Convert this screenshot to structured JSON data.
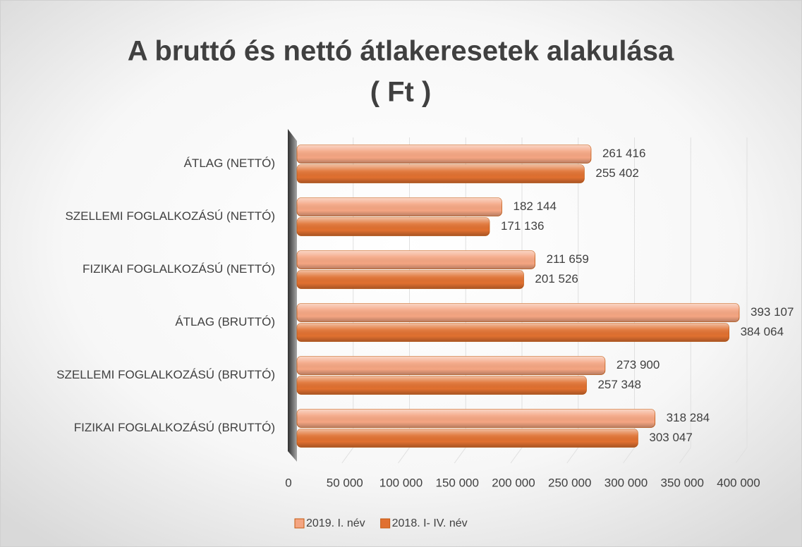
{
  "chart_data": {
    "type": "bar",
    "orientation": "horizontal",
    "title": [
      "A bruttó és nettó  átlakeresetek alakulása",
      "( Ft )"
    ],
    "categories": [
      "ÁTLAG (NETTÓ)",
      "SZELLEMI FOGLALKOZÁSÚ (NETTÓ)",
      "FIZIKAI FOGLALKOZÁSÚ (NETTÓ)",
      "ÁTLAG (BRUTTÓ)",
      "SZELLEMI FOGLALKOZÁSÚ (BRUTTÓ)",
      "FIZIKAI FOGLALKOZÁSÚ (BRUTTÓ)"
    ],
    "series": [
      {
        "name": "2019. I. név",
        "color": "#f4a582",
        "values": [
          261416,
          182144,
          211659,
          393107,
          273900,
          318284
        ],
        "value_labels": [
          "261 416",
          "182 144",
          "211 659",
          "393 107",
          "273 900",
          "318 284"
        ]
      },
      {
        "name": "2018. I- IV. név",
        "color": "#e07030",
        "values": [
          255402,
          171136,
          201526,
          384064,
          257348,
          303047
        ],
        "value_labels": [
          "255 402",
          "171 136",
          "201 526",
          "384 064",
          "257 348",
          "303 047"
        ]
      }
    ],
    "xlim": [
      0,
      400000
    ],
    "xticks": [
      0,
      {
        "value": 50000,
        "label": "50 000"
      },
      {
        "value": 100000,
        "label": "100 000"
      },
      {
        "value": 150000,
        "label": "150 000"
      },
      {
        "value": 200000,
        "label": "200 000"
      },
      {
        "value": 250000,
        "label": "250 000"
      },
      {
        "value": 300000,
        "label": "300 000"
      },
      {
        "value": 350000,
        "label": "350 000"
      },
      {
        "value": 400000,
        "label": "400 000"
      }
    ],
    "grid": true,
    "legend": "bottom"
  }
}
